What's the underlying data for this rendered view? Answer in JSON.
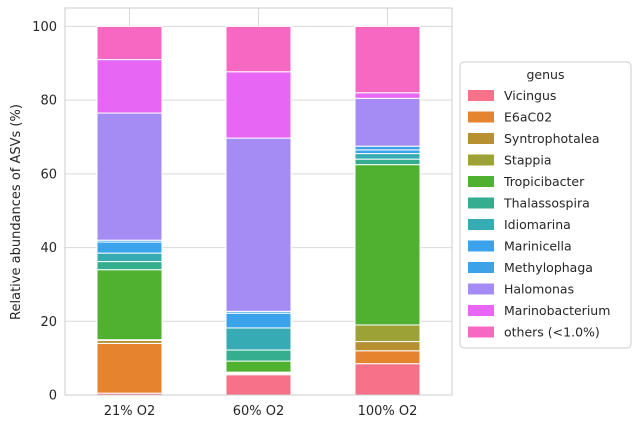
{
  "chart_data": {
    "type": "bar",
    "stacked": true,
    "categories": [
      "21% O2",
      "60% O2",
      "100% O2"
    ],
    "ylabel": "Relative abundances of ASVs (%)",
    "xlabel": "",
    "ylim": [
      0,
      105
    ],
    "yticks": [
      0,
      20,
      40,
      60,
      80,
      100
    ],
    "grid": true,
    "legend": {
      "title": "genus",
      "position": "right"
    },
    "series": [
      {
        "name": "Vicingus",
        "color": "#f77189",
        "values": [
          0.5,
          5.5,
          8.5
        ]
      },
      {
        "name": "E6aC02",
        "color": "#e5832f",
        "values": [
          13.5,
          0.3,
          3.5
        ]
      },
      {
        "name": "Syntrophotalea",
        "color": "#b79131",
        "values": [
          0.8,
          0.2,
          2.5
        ]
      },
      {
        "name": "Stappia",
        "color": "#9ca236",
        "values": [
          0.2,
          0.2,
          4.5
        ]
      },
      {
        "name": "Tropicibacter",
        "color": "#50b131",
        "values": [
          19,
          3,
          43.5
        ]
      },
      {
        "name": "Thalassospira",
        "color": "#34ae8f",
        "values": [
          2.2,
          3,
          1.5
        ]
      },
      {
        "name": "Idiomarina",
        "color": "#37abb4",
        "values": [
          2.3,
          6,
          1.5
        ]
      },
      {
        "name": "Marinicella",
        "color": "#3ba3ec",
        "values": [
          3,
          4,
          1
        ]
      },
      {
        "name": "Methylophaga",
        "color": "#3da2e8",
        "values": [
          0.5,
          0.5,
          1
        ]
      },
      {
        "name": "Halomonas",
        "color": "#a48cf4",
        "values": [
          34.5,
          47,
          13
        ]
      },
      {
        "name": "Marinobacterium",
        "color": "#e866f4",
        "values": [
          14.5,
          18,
          1.5
        ]
      },
      {
        "name": "others (<1.0%)",
        "color": "#f668c2",
        "values": [
          9,
          12.3,
          18
        ]
      }
    ]
  }
}
